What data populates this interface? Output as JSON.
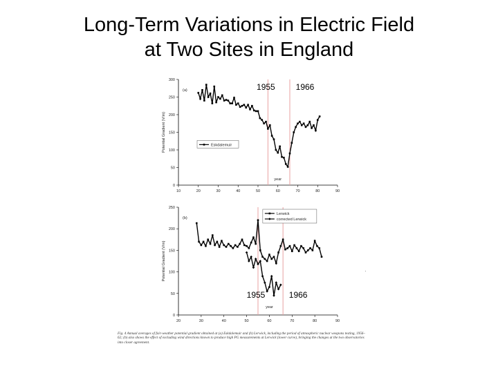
{
  "slide": {
    "title_line1": "Long-Term Variations in Electric Field",
    "title_line2": "at Two Sites in England"
  },
  "markers": {
    "year_a": "1955",
    "year_b": "1966"
  },
  "caption": "Fig. 4   Annual averages of fair-weather potential gradient obtained at (a) Eskdalemuir and (b) Lerwick, including the period of atmospheric nuclear weapons testing, 1956–62; (b) also shows the effect of excluding wind directions known to produce high PG measurements at Lerwick (lower curve), bringing the changes at the two observatories into closer agreement.",
  "stray_mark": "·",
  "colors": {
    "marker_line": "#e8a0a0",
    "series": "#000000",
    "axis": "#000000"
  },
  "chart_data": [
    {
      "type": "line",
      "panel_label": "(a)",
      "ylabel": "Potential Gradient (V/m)",
      "xlabel": "year",
      "xlim": [
        10,
        90
      ],
      "ylim": [
        0,
        300
      ],
      "xticks": [
        10,
        20,
        30,
        40,
        50,
        60,
        70,
        80,
        90
      ],
      "yticks": [
        0,
        50,
        100,
        150,
        200,
        250,
        300
      ],
      "ytick_labels": [
        "0",
        "50",
        "100",
        "150",
        "200",
        "250",
        "300"
      ],
      "vlines": [
        55,
        66
      ],
      "legend_position": "left",
      "series": [
        {
          "name": "Eskdalemuir",
          "marker": "square",
          "x": [
            20,
            21,
            22,
            23,
            24,
            25,
            26,
            27,
            28,
            29,
            30,
            31,
            32,
            33,
            34,
            35,
            36,
            37,
            38,
            39,
            40,
            41,
            42,
            43,
            44,
            45,
            46,
            47,
            48,
            49,
            50,
            51,
            52,
            53,
            54,
            55,
            56,
            57,
            58,
            59,
            60,
            61,
            62,
            63,
            64,
            65,
            66,
            67,
            68,
            69,
            70,
            71,
            72,
            73,
            74,
            75,
            76,
            77,
            78,
            79,
            80,
            81
          ],
          "y": [
            262,
            245,
            270,
            240,
            285,
            250,
            260,
            232,
            280,
            235,
            250,
            245,
            255,
            240,
            242,
            240,
            232,
            232,
            248,
            228,
            232,
            222,
            225,
            228,
            220,
            228,
            215,
            225,
            212,
            210,
            210,
            190,
            185,
            175,
            180,
            160,
            170,
            140,
            130,
            100,
            92,
            110,
            80,
            78,
            60,
            52,
            90,
            120,
            150,
            165,
            175,
            180,
            170,
            175,
            165,
            170,
            180,
            162,
            170,
            155,
            185,
            195
          ]
        }
      ]
    },
    {
      "type": "line",
      "panel_label": "(b)",
      "ylabel": "Potential Gradient (V/m)",
      "xlabel": "year",
      "xlim": [
        20,
        90
      ],
      "ylim": [
        0,
        250
      ],
      "xticks": [
        20,
        30,
        40,
        50,
        60,
        70,
        80,
        90
      ],
      "yticks": [
        0,
        50,
        100,
        150,
        200,
        250
      ],
      "ytick_labels": [
        "0",
        "50",
        "100",
        "150",
        "200",
        "250"
      ],
      "vlines": [
        55,
        66
      ],
      "legend_position": "top-right",
      "series": [
        {
          "name": "Lerwick",
          "marker": "square",
          "x": [
            28,
            29,
            30,
            31,
            32,
            33,
            34,
            35,
            36,
            37,
            38,
            39,
            40,
            41,
            42,
            43,
            44,
            45,
            46,
            47,
            48,
            49,
            50,
            51,
            52,
            53,
            54,
            55,
            56,
            57,
            58,
            59,
            60,
            61,
            62,
            63,
            64,
            65,
            66,
            67,
            68,
            69,
            70,
            71,
            72,
            73,
            74,
            75,
            76,
            77,
            78,
            79,
            80,
            81,
            82,
            83
          ],
          "y": [
            213,
            170,
            162,
            170,
            160,
            175,
            165,
            185,
            162,
            170,
            158,
            172,
            162,
            158,
            165,
            160,
            155,
            162,
            158,
            165,
            175,
            162,
            160,
            155,
            168,
            180,
            165,
            220,
            150,
            135,
            130,
            125,
            140,
            130,
            135,
            120,
            145,
            160,
            175,
            152,
            155,
            160,
            148,
            162,
            155,
            148,
            160,
            155,
            145,
            150,
            155,
            150,
            172,
            160,
            155,
            135
          ]
        },
        {
          "name": "corrected Lerwick",
          "marker": "diamond",
          "x": [
            50,
            51,
            52,
            53,
            54,
            55,
            56,
            57,
            58,
            59,
            60,
            61,
            62,
            63,
            64,
            65
          ],
          "y": [
            145,
            125,
            135,
            110,
            130,
            118,
            125,
            90,
            75,
            55,
            65,
            90,
            45,
            75,
            60,
            70
          ]
        }
      ]
    }
  ]
}
